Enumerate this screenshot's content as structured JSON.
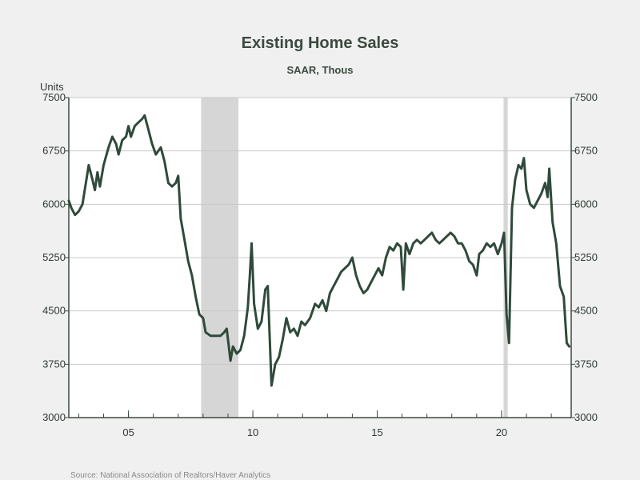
{
  "chart_data": {
    "type": "line",
    "title": "Existing Home Sales",
    "subtitle": "SAAR, Thous",
    "ylabel": "Units",
    "source": "Source:  National Association of Realtors/Haver Analytics",
    "ylim": [
      3000,
      7500
    ],
    "yticks": [
      3000,
      3750,
      4500,
      5250,
      6000,
      6750,
      7500
    ],
    "ytick_labels": [
      "3000",
      "3750",
      "4500",
      "5250",
      "6000",
      "6750",
      "7500"
    ],
    "xlim": [
      2002.6,
      2022.8
    ],
    "xticks": [
      2005,
      2010,
      2015,
      2020
    ],
    "xtick_labels": [
      "05",
      "10",
      "15",
      "20"
    ],
    "recessions": [
      [
        2007.92,
        2009.42
      ],
      [
        2020.08,
        2020.25
      ]
    ],
    "colors": {
      "line": "#2f4a3a",
      "recession": "#d6d6d6",
      "grid": "#c8c8c8",
      "axis": "#3a4a3f"
    },
    "series": [
      {
        "points": [
          [
            2002.6,
            6050
          ],
          [
            2002.7,
            5950
          ],
          [
            2002.85,
            5850
          ],
          [
            2003.0,
            5900
          ],
          [
            2003.15,
            6000
          ],
          [
            2003.4,
            6550
          ],
          [
            2003.55,
            6350
          ],
          [
            2003.65,
            6200
          ],
          [
            2003.75,
            6450
          ],
          [
            2003.85,
            6250
          ],
          [
            2004.0,
            6550
          ],
          [
            2004.2,
            6800
          ],
          [
            2004.35,
            6950
          ],
          [
            2004.5,
            6850
          ],
          [
            2004.6,
            6700
          ],
          [
            2004.75,
            6900
          ],
          [
            2004.9,
            6950
          ],
          [
            2005.0,
            7100
          ],
          [
            2005.1,
            6950
          ],
          [
            2005.25,
            7100
          ],
          [
            2005.4,
            7150
          ],
          [
            2005.55,
            7200
          ],
          [
            2005.65,
            7250
          ],
          [
            2005.8,
            7050
          ],
          [
            2005.95,
            6850
          ],
          [
            2006.1,
            6700
          ],
          [
            2006.3,
            6800
          ],
          [
            2006.45,
            6600
          ],
          [
            2006.6,
            6300
          ],
          [
            2006.75,
            6250
          ],
          [
            2006.9,
            6300
          ],
          [
            2007.0,
            6400
          ],
          [
            2007.1,
            5800
          ],
          [
            2007.25,
            5500
          ],
          [
            2007.4,
            5200
          ],
          [
            2007.55,
            5000
          ],
          [
            2007.7,
            4700
          ],
          [
            2007.85,
            4450
          ],
          [
            2008.0,
            4400
          ],
          [
            2008.1,
            4200
          ],
          [
            2008.3,
            4150
          ],
          [
            2008.5,
            4150
          ],
          [
            2008.7,
            4150
          ],
          [
            2008.85,
            4200
          ],
          [
            2008.95,
            4250
          ],
          [
            2009.1,
            3800
          ],
          [
            2009.2,
            4000
          ],
          [
            2009.35,
            3900
          ],
          [
            2009.5,
            3950
          ],
          [
            2009.65,
            4150
          ],
          [
            2009.8,
            4550
          ],
          [
            2009.88,
            5000
          ],
          [
            2009.95,
            5450
          ],
          [
            2010.05,
            4600
          ],
          [
            2010.2,
            4250
          ],
          [
            2010.35,
            4350
          ],
          [
            2010.5,
            4800
          ],
          [
            2010.6,
            4850
          ],
          [
            2010.75,
            3450
          ],
          [
            2010.9,
            3750
          ],
          [
            2011.05,
            3850
          ],
          [
            2011.2,
            4100
          ],
          [
            2011.35,
            4400
          ],
          [
            2011.5,
            4200
          ],
          [
            2011.65,
            4250
          ],
          [
            2011.8,
            4150
          ],
          [
            2011.95,
            4350
          ],
          [
            2012.1,
            4300
          ],
          [
            2012.3,
            4400
          ],
          [
            2012.5,
            4600
          ],
          [
            2012.65,
            4550
          ],
          [
            2012.8,
            4650
          ],
          [
            2012.95,
            4500
          ],
          [
            2013.1,
            4750
          ],
          [
            2013.25,
            4850
          ],
          [
            2013.4,
            4950
          ],
          [
            2013.55,
            5050
          ],
          [
            2013.7,
            5100
          ],
          [
            2013.85,
            5150
          ],
          [
            2014.0,
            5250
          ],
          [
            2014.15,
            5000
          ],
          [
            2014.3,
            4850
          ],
          [
            2014.45,
            4750
          ],
          [
            2014.6,
            4800
          ],
          [
            2014.75,
            4900
          ],
          [
            2014.9,
            5000
          ],
          [
            2015.05,
            5100
          ],
          [
            2015.2,
            5000
          ],
          [
            2015.35,
            5250
          ],
          [
            2015.5,
            5400
          ],
          [
            2015.65,
            5350
          ],
          [
            2015.8,
            5450
          ],
          [
            2015.95,
            5400
          ],
          [
            2016.05,
            4800
          ],
          [
            2016.15,
            5450
          ],
          [
            2016.3,
            5300
          ],
          [
            2016.45,
            5450
          ],
          [
            2016.6,
            5500
          ],
          [
            2016.75,
            5450
          ],
          [
            2016.9,
            5500
          ],
          [
            2017.05,
            5550
          ],
          [
            2017.2,
            5600
          ],
          [
            2017.35,
            5500
          ],
          [
            2017.5,
            5450
          ],
          [
            2017.65,
            5500
          ],
          [
            2017.8,
            5550
          ],
          [
            2017.95,
            5600
          ],
          [
            2018.1,
            5550
          ],
          [
            2018.25,
            5450
          ],
          [
            2018.4,
            5450
          ],
          [
            2018.55,
            5350
          ],
          [
            2018.7,
            5200
          ],
          [
            2018.85,
            5150
          ],
          [
            2019.0,
            5000
          ],
          [
            2019.1,
            5300
          ],
          [
            2019.25,
            5350
          ],
          [
            2019.4,
            5450
          ],
          [
            2019.55,
            5400
          ],
          [
            2019.7,
            5450
          ],
          [
            2019.85,
            5300
          ],
          [
            2020.0,
            5450
          ],
          [
            2020.1,
            5600
          ],
          [
            2020.2,
            4450
          ],
          [
            2020.3,
            4050
          ],
          [
            2020.42,
            5950
          ],
          [
            2020.55,
            6350
          ],
          [
            2020.68,
            6550
          ],
          [
            2020.8,
            6500
          ],
          [
            2020.9,
            6650
          ],
          [
            2021.0,
            6200
          ],
          [
            2021.15,
            6000
          ],
          [
            2021.3,
            5950
          ],
          [
            2021.45,
            6050
          ],
          [
            2021.6,
            6150
          ],
          [
            2021.75,
            6300
          ],
          [
            2021.85,
            6100
          ],
          [
            2021.92,
            6500
          ],
          [
            2022.05,
            5750
          ],
          [
            2022.2,
            5450
          ],
          [
            2022.35,
            4850
          ],
          [
            2022.5,
            4700
          ],
          [
            2022.62,
            4050
          ],
          [
            2022.72,
            4000
          ]
        ]
      }
    ]
  }
}
